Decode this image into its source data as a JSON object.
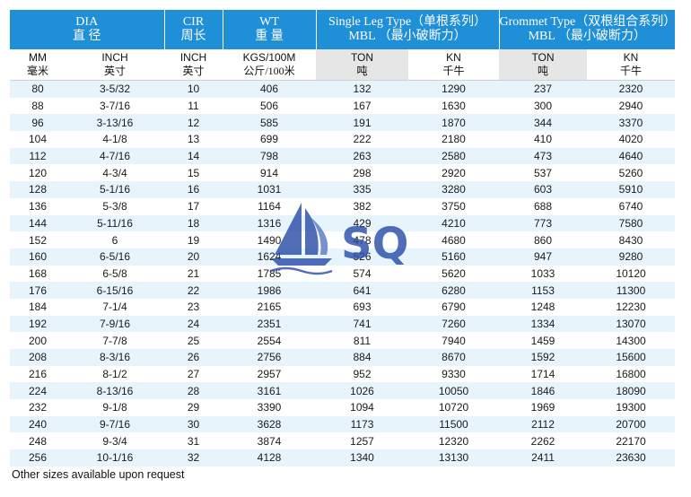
{
  "header": {
    "dia": {
      "en": "DIA",
      "cn": "直 径"
    },
    "cir": {
      "en": "CIR",
      "cn": "周长"
    },
    "wt": {
      "en": "WT",
      "cn": "重 量"
    },
    "single": {
      "en": "Single Leg Type（单根系列）",
      "cn": "MBL （最小破断力）"
    },
    "grommet": {
      "en": "Grommet Type（双根组合系列）",
      "cn": "MBL （最小破断力）"
    }
  },
  "subheader": {
    "mm": {
      "en": "MM",
      "cn": "毫米"
    },
    "inch": {
      "en": "INCH",
      "cn": "英寸"
    },
    "cir_inch": {
      "en": "INCH",
      "cn": "英寸"
    },
    "kgs": {
      "en": "KGS/100M",
      "cn": "公斤/100米"
    },
    "s_ton": {
      "en": "TON",
      "cn": "吨"
    },
    "s_kn": {
      "en": "KN",
      "cn": "千牛"
    },
    "g_ton": {
      "en": "TON",
      "cn": "吨"
    },
    "g_kn": {
      "en": "KN",
      "cn": "千牛"
    }
  },
  "rows": [
    [
      "80",
      "3-5/32",
      "10",
      "406",
      "132",
      "1290",
      "237",
      "2320"
    ],
    [
      "88",
      "3-7/16",
      "11",
      "506",
      "167",
      "1630",
      "300",
      "2940"
    ],
    [
      "96",
      "3-13/16",
      "12",
      "585",
      "191",
      "1870",
      "344",
      "3370"
    ],
    [
      "104",
      "4-1/8",
      "13",
      "699",
      "222",
      "2180",
      "410",
      "4020"
    ],
    [
      "112",
      "4-7/16",
      "14",
      "798",
      "263",
      "2580",
      "473",
      "4640"
    ],
    [
      "120",
      "4-3/4",
      "15",
      "914",
      "298",
      "2920",
      "537",
      "5260"
    ],
    [
      "128",
      "5-1/16",
      "16",
      "1031",
      "335",
      "3280",
      "603",
      "5910"
    ],
    [
      "136",
      "5-3/8",
      "17",
      "1164",
      "382",
      "3750",
      "688",
      "6740"
    ],
    [
      "144",
      "5-11/16",
      "18",
      "1316",
      "429",
      "4210",
      "773",
      "7580"
    ],
    [
      "152",
      "6",
      "19",
      "1490",
      "478",
      "4680",
      "860",
      "8430"
    ],
    [
      "160",
      "6-5/16",
      "20",
      "1624",
      "526",
      "5160",
      "947",
      "9280"
    ],
    [
      "168",
      "6-5/8",
      "21",
      "1785",
      "574",
      "5620",
      "1033",
      "10120"
    ],
    [
      "176",
      "6-15/16",
      "22",
      "1986",
      "641",
      "6280",
      "1153",
      "11300"
    ],
    [
      "184",
      "7-1/4",
      "23",
      "2165",
      "693",
      "6790",
      "1248",
      "12230"
    ],
    [
      "192",
      "7-9/16",
      "24",
      "2351",
      "741",
      "7260",
      "1334",
      "13070"
    ],
    [
      "200",
      "7-7/8",
      "25",
      "2554",
      "811",
      "7940",
      "1459",
      "14300"
    ],
    [
      "208",
      "8-3/16",
      "26",
      "2756",
      "884",
      "8670",
      "1592",
      "15600"
    ],
    [
      "216",
      "8-1/2",
      "27",
      "2957",
      "952",
      "9330",
      "1714",
      "16800"
    ],
    [
      "224",
      "8-13/16",
      "28",
      "3161",
      "1026",
      "10050",
      "1846",
      "18090"
    ],
    [
      "232",
      "9-1/8",
      "29",
      "3390",
      "1094",
      "10720",
      "1969",
      "19300"
    ],
    [
      "240",
      "9-7/16",
      "30",
      "3628",
      "1173",
      "11500",
      "2112",
      "20700"
    ],
    [
      "248",
      "9-3/4",
      "31",
      "3874",
      "1257",
      "12320",
      "2262",
      "22170"
    ],
    [
      "256",
      "10-1/16",
      "32",
      "4128",
      "1340",
      "13130",
      "2411",
      "23630"
    ]
  ],
  "note": "Other sizes available upon request",
  "logo": {
    "text": "SQ",
    "color": "#2b4fa8"
  },
  "colors": {
    "header_bg": "#1f8fd8",
    "row_alt": "#e8f4fc",
    "subheader_gray": "#e6e6e6"
  }
}
